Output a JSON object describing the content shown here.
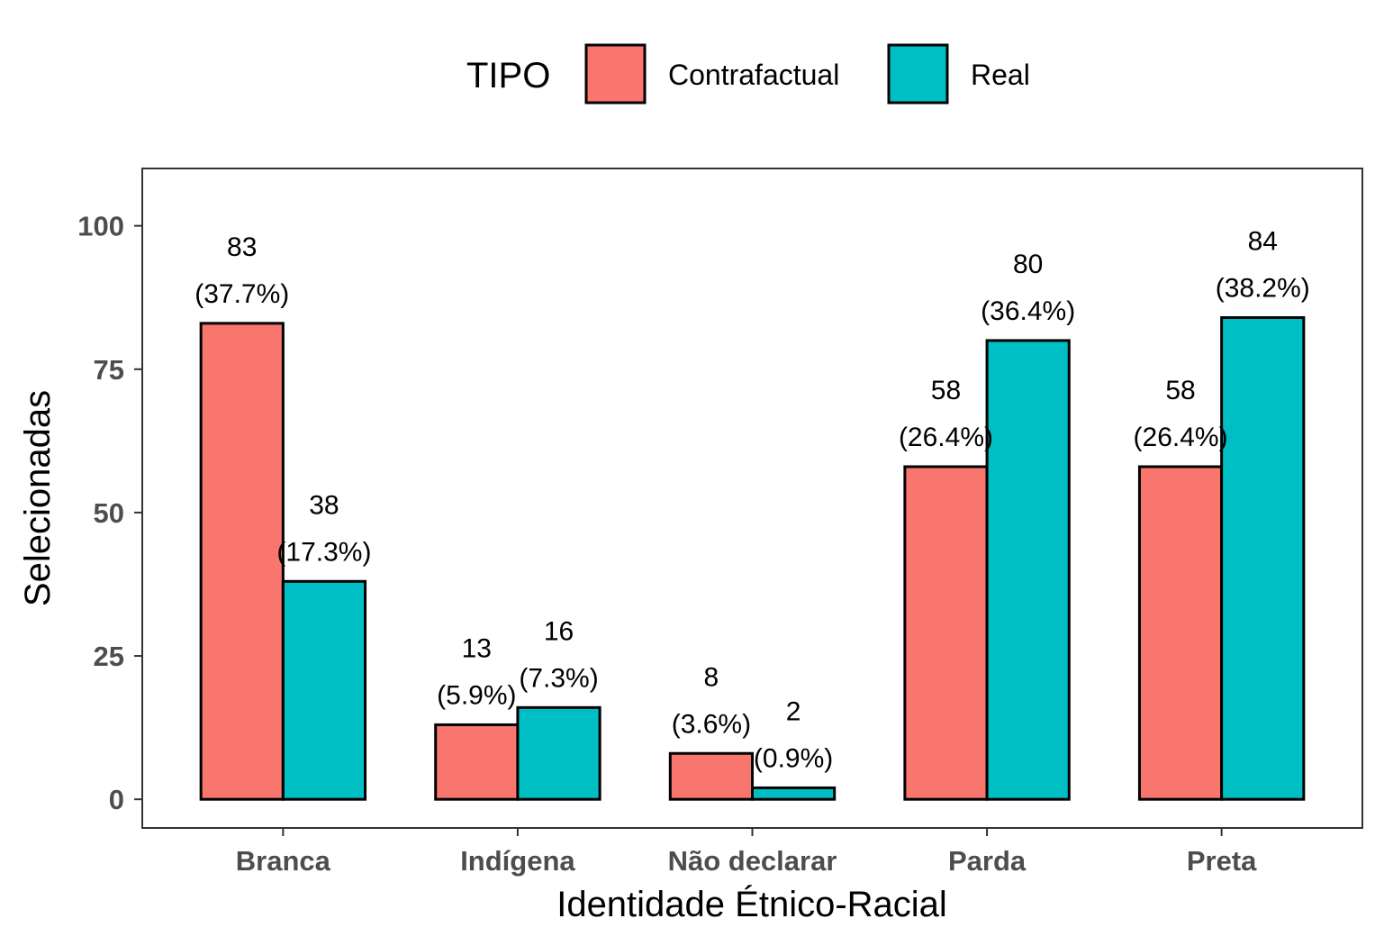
{
  "chart_data": {
    "type": "bar",
    "title": "",
    "xlabel": "Identidade Étnico-Racial",
    "ylabel": "Selecionadas",
    "categories": [
      "Branca",
      "Indígena",
      "Não declarar",
      "Parda",
      "Preta"
    ],
    "series": [
      {
        "name": "Contrafactual",
        "color": "#F8766D",
        "values": [
          83,
          13,
          8,
          58,
          58
        ],
        "labels": [
          "(37.7%)",
          "(5.9%)",
          "(3.6%)",
          "(26.4%)",
          "(26.4%)"
        ]
      },
      {
        "name": "Real",
        "color": "#00BFC4",
        "values": [
          38,
          16,
          2,
          80,
          84
        ],
        "labels": [
          "(17.3%)",
          "(7.3%)",
          "(0.9%)",
          "(36.4%)",
          "(38.2%)"
        ]
      }
    ],
    "ylim": [
      -5,
      110
    ],
    "yticks": [
      0,
      25,
      50,
      75,
      100
    ],
    "grid": false,
    "legend": {
      "title": "TIPO",
      "position": "top"
    }
  }
}
